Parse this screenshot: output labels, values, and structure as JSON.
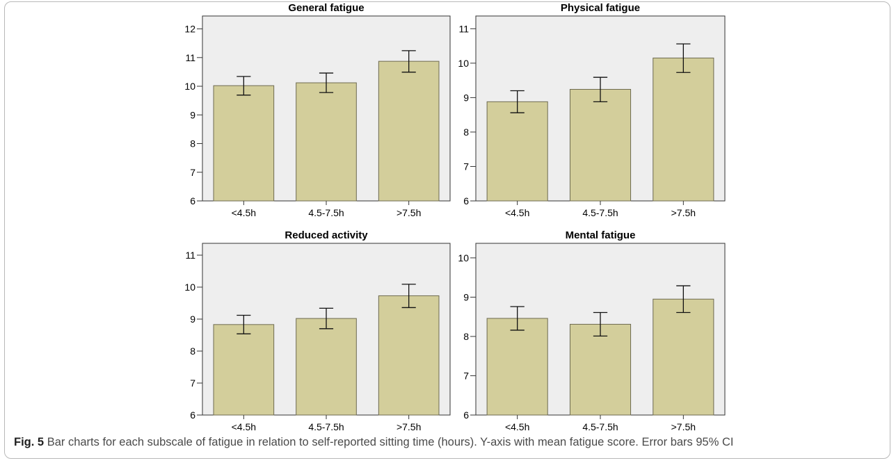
{
  "caption": {
    "label": "Fig. 5",
    "text": "Bar charts for each subscale of fatigue in relation to self-reported sitting time (hours). Y-axis with mean fatigue score. Error bars 95% CI"
  },
  "colors": {
    "bar_fill": "#d3ce9b",
    "bar_stroke": "#6d6a50",
    "plot_background": "#eeeeee",
    "axis": "#333333",
    "frame_border": "#b8b8b8"
  },
  "chart_data": [
    {
      "type": "bar",
      "title": "General fatigue",
      "categories": [
        "<4.5h",
        "4.5-7.5h",
        ">7.5h"
      ],
      "values": [
        10.02,
        10.12,
        10.87
      ],
      "error_low": [
        9.69,
        9.78,
        10.49
      ],
      "error_high": [
        10.34,
        10.46,
        11.24
      ],
      "yticks": [
        6,
        7,
        8,
        9,
        10,
        11,
        12
      ],
      "ylim": [
        6,
        12.45
      ],
      "xlabel": "",
      "ylabel": "",
      "grid": false
    },
    {
      "type": "bar",
      "title": "Physical fatigue",
      "categories": [
        "<4.5h",
        "4.5-7.5h",
        ">7.5h"
      ],
      "values": [
        8.88,
        9.24,
        10.15
      ],
      "error_low": [
        8.56,
        8.88,
        9.73
      ],
      "error_high": [
        9.2,
        9.59,
        10.56
      ],
      "yticks": [
        6,
        7,
        8,
        9,
        10,
        11
      ],
      "ylim": [
        6,
        11.37
      ],
      "xlabel": "",
      "ylabel": "",
      "grid": false
    },
    {
      "type": "bar",
      "title": "Reduced activity",
      "categories": [
        "<4.5h",
        "4.5-7.5h",
        ">7.5h"
      ],
      "values": [
        8.83,
        9.02,
        9.73
      ],
      "error_low": [
        8.54,
        8.7,
        9.36
      ],
      "error_high": [
        9.12,
        9.34,
        10.09
      ],
      "yticks": [
        6,
        7,
        8,
        9,
        10,
        11
      ],
      "ylim": [
        6,
        11.37
      ],
      "xlabel": "",
      "ylabel": "",
      "grid": false
    },
    {
      "type": "bar",
      "title": "Mental fatigue",
      "categories": [
        "<4.5h",
        "4.5-7.5h",
        ">7.5h"
      ],
      "values": [
        8.46,
        8.31,
        8.95
      ],
      "error_low": [
        8.16,
        8.01,
        8.61
      ],
      "error_high": [
        8.76,
        8.61,
        9.29
      ],
      "yticks": [
        6,
        7,
        8,
        9,
        10
      ],
      "ylim": [
        6,
        10.37
      ],
      "xlabel": "",
      "ylabel": "",
      "grid": false
    }
  ]
}
